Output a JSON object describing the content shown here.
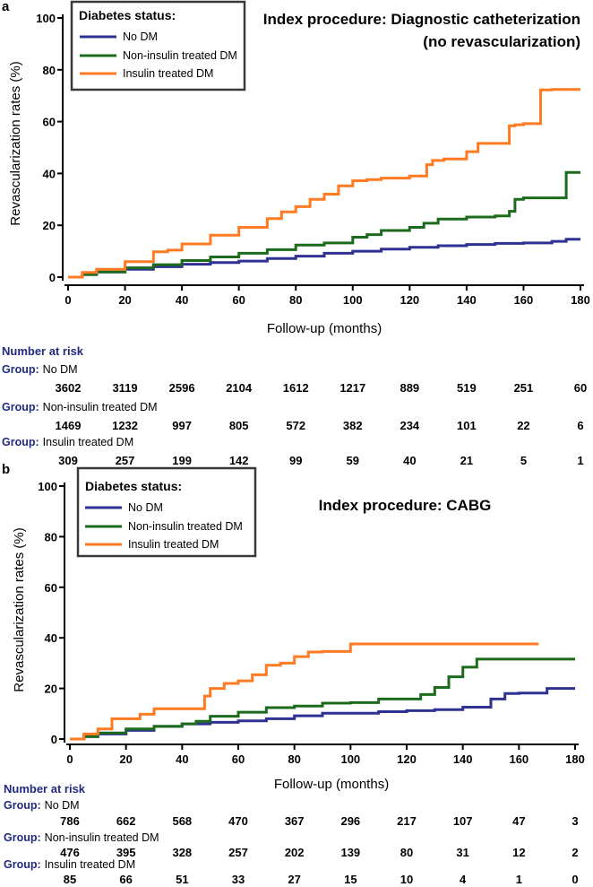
{
  "colors": {
    "no_dm": "#2e3192",
    "non_insulin": "#1c6b1c",
    "insulin": "#ff7a22",
    "axis": "#000000",
    "risk_header": "#1f2a80"
  },
  "chart_data": [
    {
      "panel": "a",
      "type": "line",
      "step": true,
      "title": [
        "Index procedure: Diagnostic catheterization",
        "(no revascularization)"
      ],
      "xlabel": "Follow-up (months)",
      "ylabel": "Revascularization  rates (%)",
      "xlim": [
        0,
        180
      ],
      "ylim": [
        0,
        100
      ],
      "xticks": [
        0,
        20,
        40,
        60,
        80,
        100,
        120,
        140,
        160,
        180
      ],
      "yticks": [
        0,
        20,
        40,
        60,
        80,
        100
      ],
      "legend": {
        "title": "Diabetes status:",
        "placement": "top-left",
        "entries": [
          {
            "name": "No DM",
            "color_key": "no_dm"
          },
          {
            "name": "Non-insulin treated DM",
            "color_key": "non_insulin"
          },
          {
            "name": "Insulin treated DM",
            "color_key": "insulin"
          }
        ]
      },
      "series": [
        {
          "name": "No DM",
          "color_key": "no_dm",
          "x": [
            0,
            5,
            10,
            20,
            30,
            40,
            50,
            60,
            70,
            80,
            90,
            100,
            110,
            120,
            130,
            140,
            150,
            160,
            170,
            175,
            180
          ],
          "y": [
            0,
            1,
            2,
            3,
            4,
            5,
            5.6,
            6.2,
            7.2,
            8.1,
            9.2,
            10,
            10.8,
            11.5,
            12.1,
            12.6,
            13,
            13.2,
            13.8,
            14.6,
            14.6
          ]
        },
        {
          "name": "Non-insulin treated DM",
          "color_key": "non_insulin",
          "x": [
            0,
            5,
            10,
            20,
            30,
            40,
            50,
            60,
            70,
            80,
            90,
            100,
            105,
            110,
            120,
            125,
            130,
            140,
            150,
            155,
            157,
            160,
            170,
            174,
            175,
            180
          ],
          "y": [
            0,
            1,
            2,
            3.6,
            4.8,
            6.4,
            7.8,
            9.2,
            10.6,
            12.4,
            13.2,
            15.4,
            16.4,
            18,
            19.2,
            20.8,
            22.4,
            23.2,
            23.6,
            25.4,
            30,
            30.6,
            30.6,
            30.6,
            40.4,
            40.4
          ]
        },
        {
          "name": "Insulin treated DM",
          "color_key": "insulin",
          "x": [
            0,
            5,
            10,
            20,
            30,
            35,
            40,
            50,
            60,
            70,
            75,
            80,
            85,
            90,
            95,
            100,
            105,
            110,
            120,
            126,
            128,
            132,
            140,
            144,
            150,
            155,
            157,
            160,
            166,
            170,
            180
          ],
          "y": [
            0,
            1.8,
            3,
            6,
            9.8,
            10.4,
            12.8,
            16.2,
            19.2,
            22.6,
            25.2,
            27.2,
            30,
            32,
            35.2,
            37.2,
            37.6,
            38.2,
            39,
            43.4,
            45,
            45.6,
            48.4,
            51.6,
            51.6,
            58.4,
            58.8,
            59.2,
            72.2,
            72.4,
            72.4
          ]
        }
      ],
      "number_at_risk": {
        "header": "Number at risk",
        "group_prefix": "Group:",
        "groups": [
          {
            "name": "No DM",
            "values": [
              "3602",
              "3119",
              "2596",
              "2104",
              "1612",
              "1217",
              "889",
              "519",
              "251",
              "60"
            ]
          },
          {
            "name": "Non-insulin treated DM",
            "values": [
              "1469",
              "1232",
              "997",
              "805",
              "572",
              "382",
              "234",
              "101",
              "22",
              "6"
            ]
          },
          {
            "name": "Insulin treated DM",
            "values": [
              "309",
              "257",
              "199",
              "142",
              "99",
              "59",
              "40",
              "21",
              "5",
              "1"
            ]
          }
        ]
      }
    },
    {
      "panel": "b",
      "type": "line",
      "step": true,
      "title": [
        "Index procedure: CABG"
      ],
      "xlabel": "Follow-up (months)",
      "ylabel": "Revascularization  rates (%)",
      "xlim": [
        0,
        180
      ],
      "ylim": [
        0,
        100
      ],
      "xticks": [
        0,
        20,
        40,
        60,
        80,
        100,
        120,
        140,
        160,
        180
      ],
      "yticks": [
        0,
        20,
        40,
        60,
        80,
        100
      ],
      "legend": {
        "title": "Diabetes status:",
        "placement": "top-left",
        "entries": [
          {
            "name": "No DM",
            "color_key": "no_dm"
          },
          {
            "name": "Non-insulin treated DM",
            "color_key": "non_insulin"
          },
          {
            "name": "Insulin treated DM",
            "color_key": "insulin"
          }
        ]
      },
      "series": [
        {
          "name": "No DM",
          "color_key": "no_dm",
          "x": [
            0,
            5,
            10,
            20,
            30,
            40,
            50,
            60,
            70,
            80,
            90,
            100,
            110,
            120,
            130,
            140,
            150,
            155,
            160,
            170,
            180
          ],
          "y": [
            0,
            1,
            2,
            3.4,
            5,
            6,
            6.6,
            7.2,
            8,
            9.2,
            10.2,
            10.2,
            10.8,
            11.2,
            11.6,
            12.6,
            15.8,
            18,
            18.2,
            20,
            20
          ]
        },
        {
          "name": "Non-insulin treated DM",
          "color_key": "non_insulin",
          "x": [
            0,
            5,
            10,
            20,
            30,
            40,
            45,
            50,
            60,
            70,
            80,
            90,
            100,
            110,
            120,
            125,
            130,
            135,
            140,
            145,
            150,
            160,
            170,
            180
          ],
          "y": [
            0,
            1,
            2.4,
            4,
            5,
            6,
            7,
            9,
            10.6,
            12.4,
            13,
            14.2,
            14.4,
            15.8,
            15.8,
            17.6,
            20.4,
            24.6,
            28.4,
            31.6,
            31.6,
            31.6,
            31.6,
            31.6
          ]
        },
        {
          "name": "Insulin treated DM",
          "color_key": "insulin",
          "x": [
            0,
            5,
            10,
            15,
            20,
            25,
            30,
            35,
            40,
            45,
            48,
            50,
            55,
            60,
            65,
            70,
            75,
            80,
            85,
            90,
            100,
            110,
            120,
            140,
            160,
            167
          ],
          "y": [
            0,
            2,
            4,
            8,
            8,
            9.8,
            12,
            12,
            12,
            12,
            17,
            20,
            22,
            23,
            25.4,
            29.2,
            30,
            32.6,
            34.4,
            34.6,
            37.6,
            37.6,
            37.6,
            37.6,
            37.6,
            37.6
          ]
        }
      ],
      "number_at_risk": {
        "header": "Number at risk",
        "group_prefix": "Group:",
        "groups": [
          {
            "name": "No DM",
            "values": [
              "786",
              "662",
              "568",
              "470",
              "367",
              "296",
              "217",
              "107",
              "47",
              "3"
            ]
          },
          {
            "name": "Non-insulin treated DM",
            "values": [
              "476",
              "395",
              "328",
              "257",
              "202",
              "139",
              "80",
              "31",
              "12",
              "2"
            ]
          },
          {
            "name": "Insulin treated DM",
            "values": [
              "85",
              "66",
              "51",
              "33",
              "27",
              "15",
              "10",
              "4",
              "1",
              "0"
            ]
          }
        ]
      }
    }
  ]
}
